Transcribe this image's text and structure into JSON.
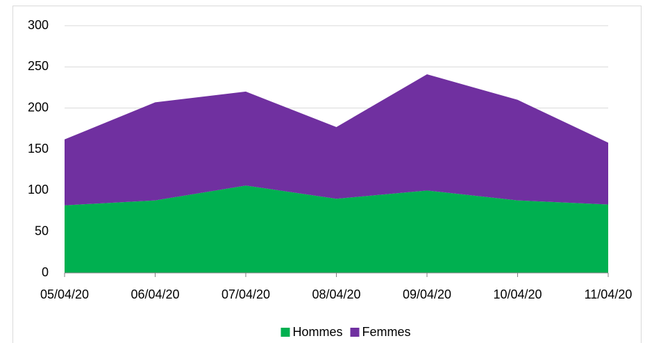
{
  "chart_data": {
    "type": "stacked_area",
    "categories": [
      "05/04/20",
      "06/04/20",
      "07/04/20",
      "08/04/20",
      "09/04/20",
      "10/04/20",
      "11/04/20"
    ],
    "series": [
      {
        "name": "Hommes",
        "color": "#00b050",
        "values": [
          82,
          88,
          106,
          90,
          100,
          88,
          83
        ]
      },
      {
        "name": "Femmes",
        "color": "#7030a0",
        "values": [
          80,
          119,
          114,
          87,
          141,
          122,
          75
        ]
      }
    ],
    "ylim": [
      0,
      300
    ],
    "yticks": [
      0,
      50,
      100,
      150,
      200,
      250,
      300
    ],
    "grid": true,
    "legend": "bottom"
  }
}
